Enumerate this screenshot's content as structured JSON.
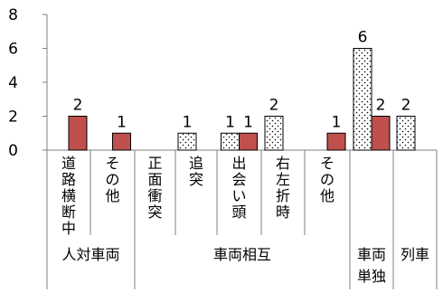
{
  "chart_data": {
    "type": "bar",
    "title": "",
    "xlabel": "",
    "ylabel": "",
    "ylim": [
      0,
      8
    ],
    "yticks": [
      "0",
      "2",
      "4",
      "6",
      "8"
    ],
    "grid": false,
    "legend": "none",
    "categories": [
      "道路横断中",
      "その他",
      "正面衝突",
      "追突",
      "出会い頭",
      "右左折時",
      "その他",
      "",
      ""
    ],
    "groups": [
      {
        "label": "人対車両",
        "span": [
          0,
          1
        ]
      },
      {
        "label": "車両相互",
        "span": [
          2,
          6
        ]
      },
      {
        "label": "車両単独",
        "span": [
          7,
          7
        ]
      },
      {
        "label": "列車",
        "span": [
          8,
          8
        ]
      }
    ],
    "series": [
      {
        "style": "dotted",
        "color": "#ffffff",
        "values": [
          null,
          null,
          0,
          1,
          1,
          2,
          null,
          6,
          2
        ]
      },
      {
        "style": "solid",
        "color": "#c0504d",
        "values": [
          2,
          1,
          null,
          null,
          1,
          null,
          1,
          2,
          null
        ]
      }
    ]
  }
}
